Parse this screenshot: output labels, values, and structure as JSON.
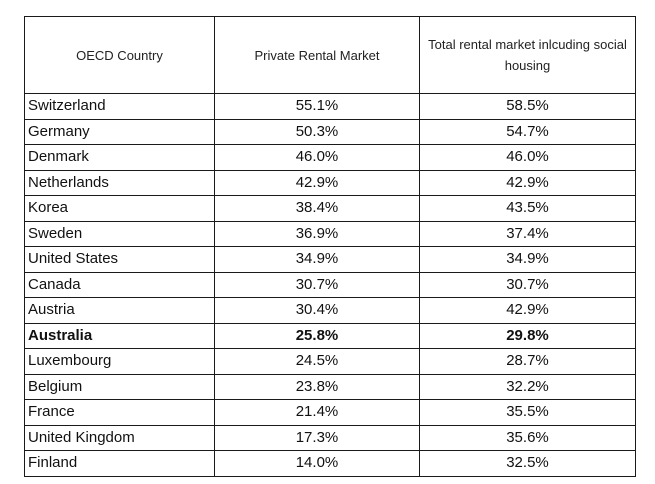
{
  "table": {
    "headers": [
      "OECD Country",
      "Private Rental Market",
      "Total rental market inlcuding social housing"
    ],
    "rows": [
      {
        "country": "Switzerland",
        "private": "55.1%",
        "total": "58.5%",
        "bold": false
      },
      {
        "country": "Germany",
        "private": "50.3%",
        "total": "54.7%",
        "bold": false
      },
      {
        "country": "Denmark",
        "private": "46.0%",
        "total": "46.0%",
        "bold": false
      },
      {
        "country": "Netherlands",
        "private": "42.9%",
        "total": "42.9%",
        "bold": false
      },
      {
        "country": "Korea",
        "private": "38.4%",
        "total": "43.5%",
        "bold": false
      },
      {
        "country": "Sweden",
        "private": "36.9%",
        "total": "37.4%",
        "bold": false
      },
      {
        "country": "United States",
        "private": "34.9%",
        "total": "34.9%",
        "bold": false
      },
      {
        "country": "Canada",
        "private": "30.7%",
        "total": "30.7%",
        "bold": false
      },
      {
        "country": "Austria",
        "private": "30.4%",
        "total": "42.9%",
        "bold": false
      },
      {
        "country": "Australia",
        "private": "25.8%",
        "total": "29.8%",
        "bold": true
      },
      {
        "country": "Luxembourg",
        "private": "24.5%",
        "total": "28.7%",
        "bold": false
      },
      {
        "country": "Belgium",
        "private": "23.8%",
        "total": "32.2%",
        "bold": false
      },
      {
        "country": "France",
        "private": "21.4%",
        "total": "35.5%",
        "bold": false
      },
      {
        "country": "United Kingdom",
        "private": "17.3%",
        "total": "35.6%",
        "bold": false
      },
      {
        "country": "Finland",
        "private": "14.0%",
        "total": "32.5%",
        "bold": false
      }
    ]
  }
}
